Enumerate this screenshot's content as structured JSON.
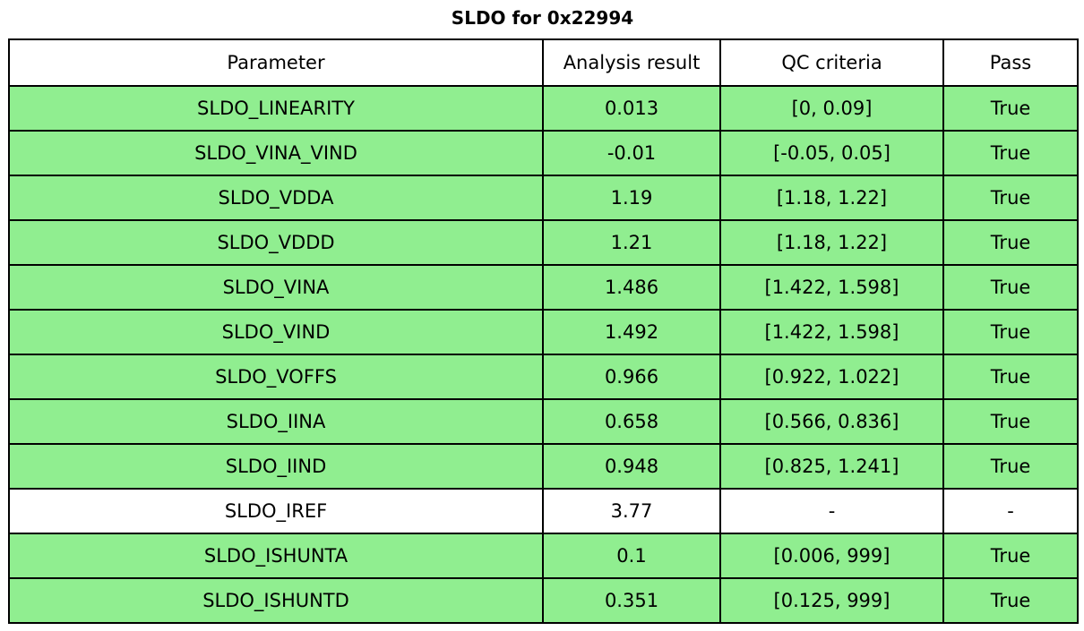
{
  "title": "SLDO for 0x22994",
  "colors": {
    "pass_row_background": "#90ee90",
    "neutral_row_background": "#ffffff",
    "header_background": "#ffffff",
    "border": "#000000",
    "text": "#000000"
  },
  "chart_data": {
    "type": "table",
    "title": "SLDO for 0x22994",
    "columns": [
      "Parameter",
      "Analysis result",
      "QC criteria",
      "Pass"
    ],
    "rows": [
      {
        "parameter": "SLDO_LINEARITY",
        "analysis_result": "0.013",
        "qc_criteria": "[0, 0.09]",
        "pass": "True",
        "highlighted": true
      },
      {
        "parameter": "SLDO_VINA_VIND",
        "analysis_result": "-0.01",
        "qc_criteria": "[-0.05, 0.05]",
        "pass": "True",
        "highlighted": true
      },
      {
        "parameter": "SLDO_VDDA",
        "analysis_result": "1.19",
        "qc_criteria": "[1.18, 1.22]",
        "pass": "True",
        "highlighted": true
      },
      {
        "parameter": "SLDO_VDDD",
        "analysis_result": "1.21",
        "qc_criteria": "[1.18, 1.22]",
        "pass": "True",
        "highlighted": true
      },
      {
        "parameter": "SLDO_VINA",
        "analysis_result": "1.486",
        "qc_criteria": "[1.422, 1.598]",
        "pass": "True",
        "highlighted": true
      },
      {
        "parameter": "SLDO_VIND",
        "analysis_result": "1.492",
        "qc_criteria": "[1.422, 1.598]",
        "pass": "True",
        "highlighted": true
      },
      {
        "parameter": "SLDO_VOFFS",
        "analysis_result": "0.966",
        "qc_criteria": "[0.922, 1.022]",
        "pass": "True",
        "highlighted": true
      },
      {
        "parameter": "SLDO_IINA",
        "analysis_result": "0.658",
        "qc_criteria": "[0.566, 0.836]",
        "pass": "True",
        "highlighted": true
      },
      {
        "parameter": "SLDO_IIND",
        "analysis_result": "0.948",
        "qc_criteria": "[0.825, 1.241]",
        "pass": "True",
        "highlighted": true
      },
      {
        "parameter": "SLDO_IREF",
        "analysis_result": "3.77",
        "qc_criteria": "-",
        "pass": "-",
        "highlighted": false
      },
      {
        "parameter": "SLDO_ISHUNTA",
        "analysis_result": "0.1",
        "qc_criteria": "[0.006, 999]",
        "pass": "True",
        "highlighted": true
      },
      {
        "parameter": "SLDO_ISHUNTD",
        "analysis_result": "0.351",
        "qc_criteria": "[0.125, 999]",
        "pass": "True",
        "highlighted": true
      }
    ],
    "layout": {
      "legend": "none",
      "grid": "full-cell-borders"
    }
  }
}
